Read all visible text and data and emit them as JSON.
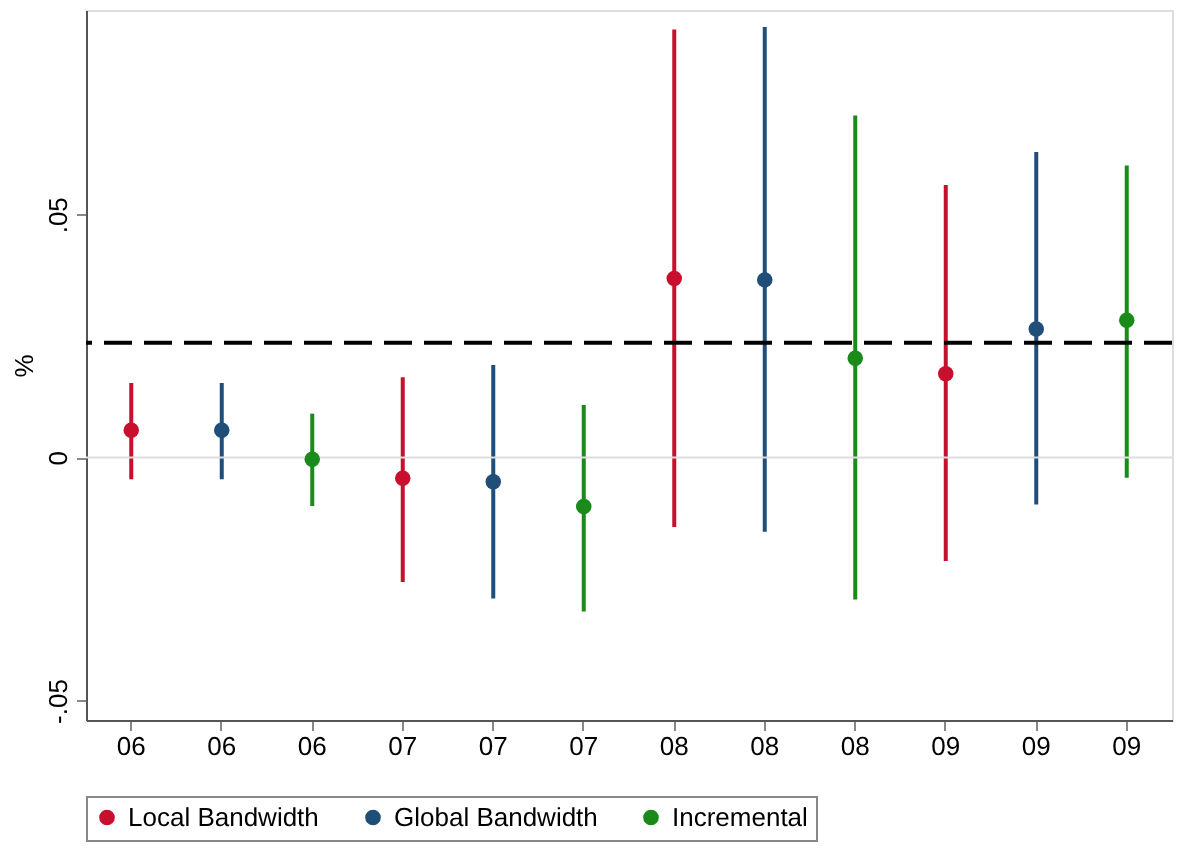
{
  "chart_data": {
    "type": "scatter",
    "ylabel": "%",
    "categories": [
      "06",
      "06",
      "06",
      "07",
      "07",
      "07",
      "08",
      "08",
      "08",
      "09",
      "09",
      "09"
    ],
    "series": [
      {
        "name": "Local Bandwidth",
        "color": "#c8102e",
        "values": [
          0.0056,
          null,
          null,
          -0.0043,
          null,
          null,
          0.0368,
          null,
          null,
          0.0172,
          null,
          null
        ],
        "errors": [
          [
            -0.0045,
            0.0153
          ],
          null,
          null,
          [
            -0.0256,
            0.0165
          ],
          null,
          null,
          [
            -0.0143,
            0.088
          ],
          null,
          null,
          [
            -0.0213,
            0.056
          ],
          null,
          null
        ]
      },
      {
        "name": "Global Bandwidth",
        "color": "#1f4e79",
        "values": [
          null,
          0.0056,
          null,
          null,
          -0.005,
          null,
          null,
          0.0365,
          null,
          null,
          0.0264,
          null
        ],
        "errors": [
          null,
          [
            -0.0045,
            0.0153
          ],
          null,
          null,
          [
            -0.029,
            0.019
          ],
          null,
          null,
          [
            -0.0153,
            0.0885
          ],
          null,
          null,
          [
            -0.0097,
            0.0628
          ],
          null
        ]
      },
      {
        "name": "Incremental",
        "color": "#1a8a1a",
        "values": [
          null,
          null,
          -0.0004,
          null,
          null,
          -0.0101,
          null,
          null,
          0.0204,
          null,
          null,
          0.0282
        ],
        "errors": [
          null,
          null,
          [
            -0.01,
            0.009
          ],
          null,
          null,
          [
            -0.0317,
            0.0108
          ],
          null,
          null,
          [
            -0.0292,
            0.0703
          ],
          null,
          null,
          [
            -0.0042,
            0.06
          ]
        ]
      }
    ],
    "ylim": [
      -0.054,
      0.092
    ],
    "yticks": [
      {
        "value": -0.05,
        "label": "-.05"
      },
      {
        "value": 0,
        "label": "0"
      },
      {
        "value": 0.05,
        "label": ".05"
      }
    ],
    "ref_lines": [
      {
        "axis": "y",
        "value": 0,
        "color": "#dddddd",
        "line_style": "solid"
      },
      {
        "axis": "y",
        "value": 0.0236,
        "color": "#000000",
        "line_style": "dashed"
      }
    ],
    "marker": "circle",
    "grid": false,
    "legend": "bottom"
  }
}
